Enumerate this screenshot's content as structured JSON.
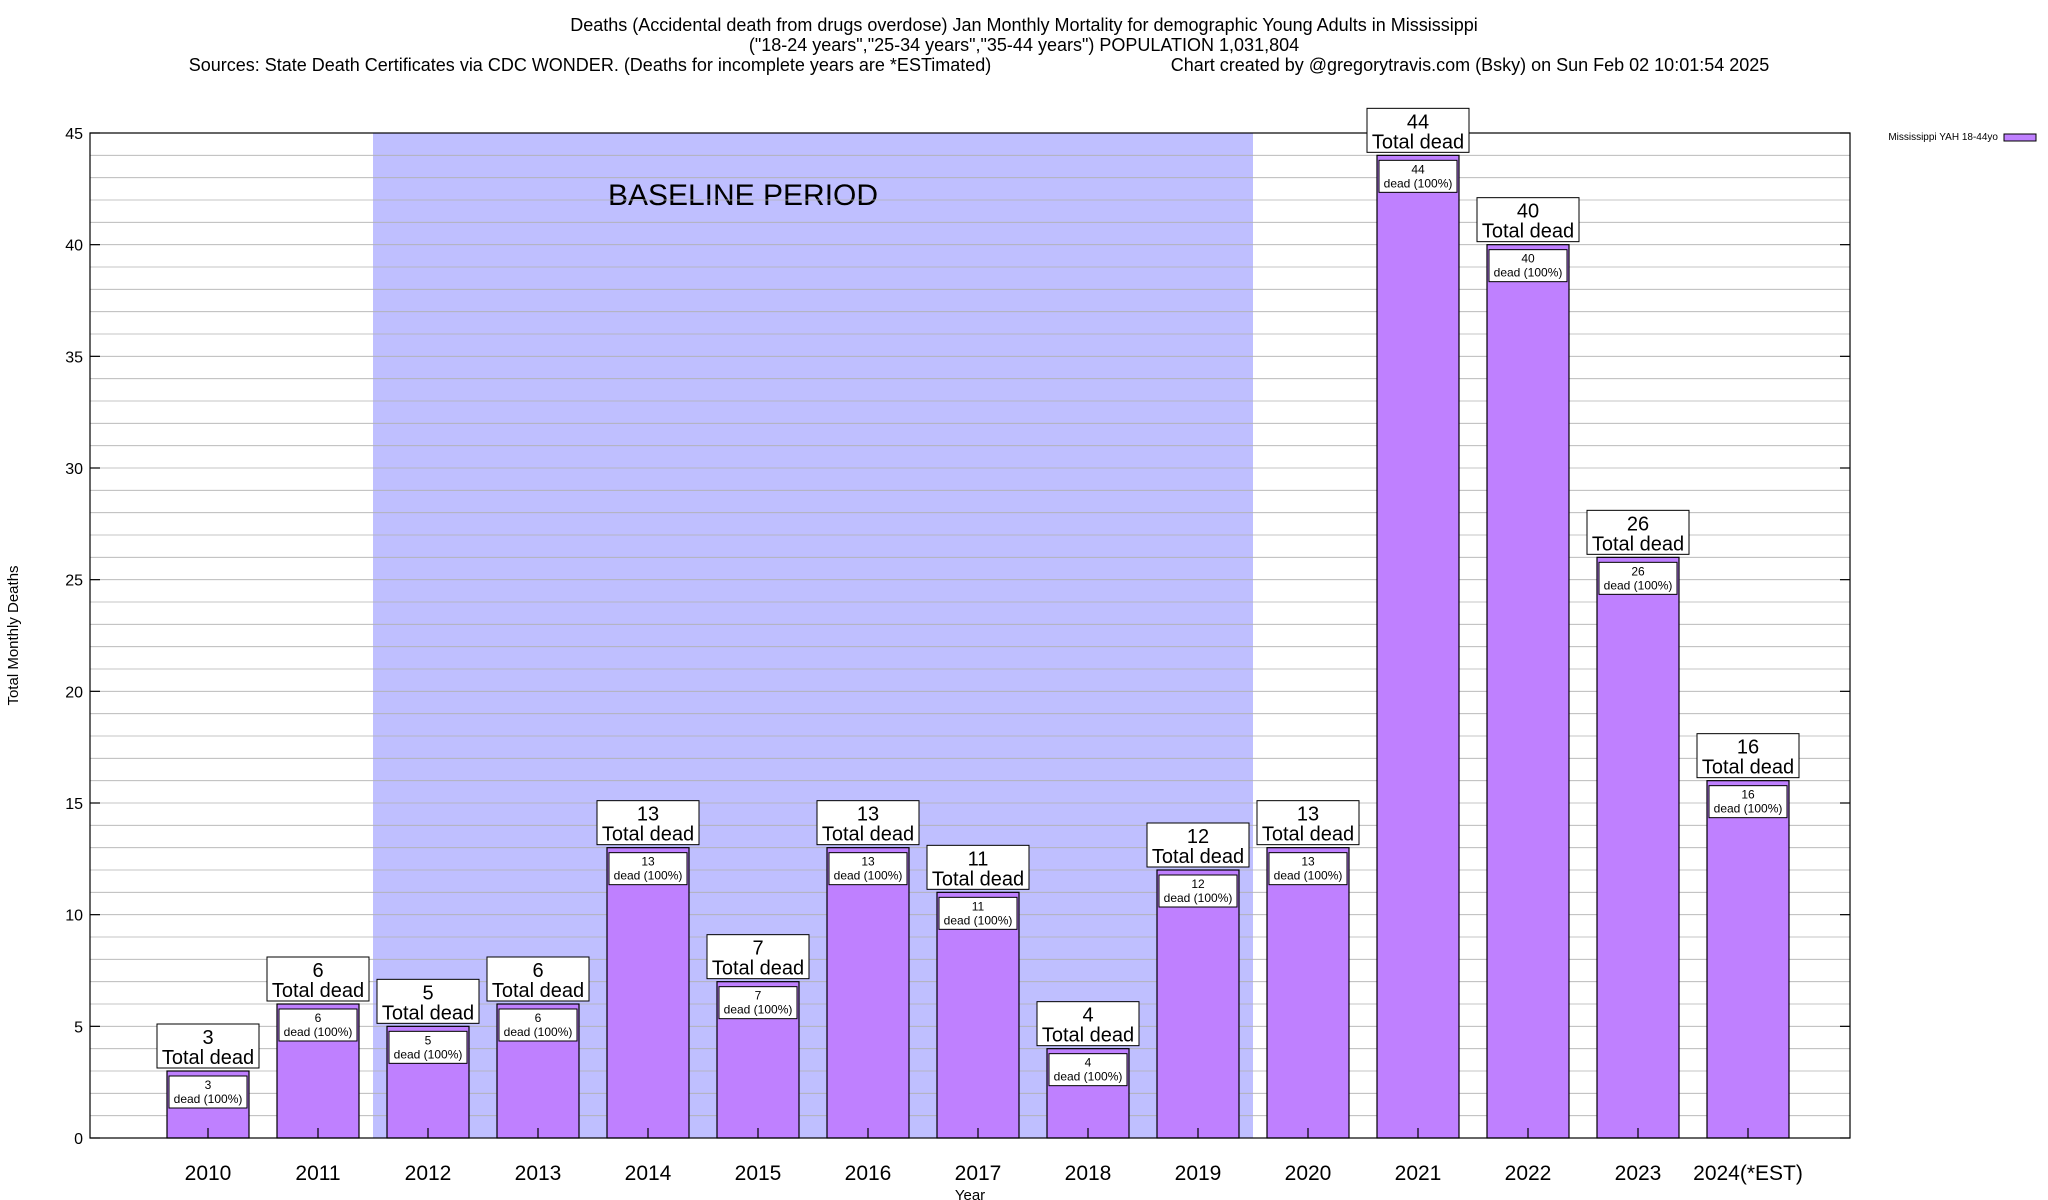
{
  "chart_data": {
    "type": "bar",
    "title": "Deaths (Accidental death from drugs overdose) Jan Monthly Mortality for demographic Young Adults in Mississippi",
    "subtitle": "(\"18-24 years\",\"25-34 years\",\"35-44 years\") POPULATION 1,031,804",
    "source_line": "Sources: State Death Certificates via CDC WONDER. (Deaths for incomplete years are *ESTimated)",
    "credit_line": "Chart created by @gregorytravis.com (Bsky) on Sun Feb 02 10:01:54 2025",
    "xlabel": "Year",
    "ylabel": "Total Monthly Deaths",
    "ylim": [
      0,
      45
    ],
    "y_ticks": [
      "0",
      "5",
      "10",
      "15",
      "20",
      "25",
      "30",
      "35",
      "40",
      "45"
    ],
    "grid": true,
    "categories": [
      "2010",
      "2011",
      "2012",
      "2013",
      "2014",
      "2015",
      "2016",
      "2017",
      "2018",
      "2019",
      "2020",
      "2021",
      "2022",
      "2023",
      "2024(*EST)"
    ],
    "series": [
      {
        "name": "Mississippi YAH 18-44yo",
        "color": "#bf80ff",
        "values": [
          3,
          6,
          5,
          6,
          13,
          7,
          13,
          11,
          4,
          12,
          13,
          44,
          40,
          26,
          16
        ]
      }
    ],
    "total_label": "Total dead",
    "inner_label": "dead (100%)",
    "baseline": {
      "label": "BASELINE PERIOD",
      "from": "2012",
      "to": "2019",
      "color": "#bfbfff"
    },
    "legend_position": "top-right"
  }
}
